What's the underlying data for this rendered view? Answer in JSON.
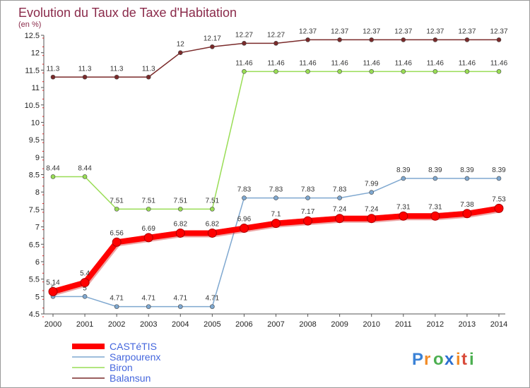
{
  "chart_data": {
    "type": "line",
    "title": "Evolution du Taux de Taxe d'Habitation",
    "ylabel": "(en %)",
    "xlabel": "",
    "ylim": [
      4.5,
      12.5
    ],
    "ytick_step": 0.5,
    "grid": false,
    "legend_position": "bottom-left",
    "categories": [
      "2000",
      "2001",
      "2002",
      "2003",
      "2004",
      "2005",
      "2006",
      "2007",
      "2008",
      "2009",
      "2010",
      "2011",
      "2012",
      "2013",
      "2014"
    ],
    "series": [
      {
        "name": "CASTéTIS",
        "color": "#ff0000",
        "values": [
          5.14,
          5.4,
          6.56,
          6.69,
          6.82,
          6.82,
          6.96,
          7.1,
          7.17,
          7.24,
          7.24,
          7.31,
          7.31,
          7.38,
          7.53
        ],
        "labels": [
          "5.14",
          "5.4",
          "6.56",
          "6.69",
          "6.82",
          "6.82",
          "6.96",
          "7.1",
          "7.17",
          "7.24",
          "7.24",
          "7.31",
          "7.31",
          "7.38",
          "7.53"
        ]
      },
      {
        "name": "Sarpourenx",
        "color": "#7fa8d0",
        "values": [
          5,
          5,
          4.71,
          4.71,
          4.71,
          4.71,
          7.83,
          7.83,
          7.83,
          7.83,
          7.99,
          8.39,
          8.39,
          8.39,
          8.39
        ],
        "labels": [
          "5",
          "5",
          "4.71",
          "4.71",
          "4.71",
          "4.71",
          "7.83",
          "7.83",
          "7.83",
          "7.83",
          "7.99",
          "8.39",
          "8.39",
          "8.39",
          "8.39"
        ]
      },
      {
        "name": "Biron",
        "color": "#99dd55",
        "values": [
          8.44,
          8.44,
          7.51,
          7.51,
          7.51,
          7.51,
          11.46,
          11.46,
          11.46,
          11.46,
          11.46,
          11.46,
          11.46,
          11.46,
          11.46
        ],
        "labels": [
          "8.44",
          "8.44",
          "7.51",
          "7.51",
          "7.51",
          "7.51",
          "11.46",
          "11.46",
          "11.46",
          "11.46",
          "11.46",
          "11.46",
          "11.46",
          "11.46",
          "11.46"
        ]
      },
      {
        "name": "Balansun",
        "color": "#7a2a2a",
        "values": [
          11.3,
          11.3,
          11.3,
          11.3,
          12,
          12.17,
          12.27,
          12.27,
          12.37,
          12.37,
          12.37,
          12.37,
          12.37,
          12.37,
          12.37
        ],
        "labels": [
          "11.3",
          "11.3",
          "11.3",
          "11.3",
          "12",
          "12.17",
          "12.27",
          "12.27",
          "12.37",
          "12.37",
          "12.37",
          "12.37",
          "12.37",
          "12.37",
          "12.37"
        ]
      }
    ]
  },
  "logo": {
    "letters": [
      "P",
      "r",
      "o",
      "x",
      "i",
      "t",
      "i"
    ],
    "colors": [
      "#3b82d6",
      "#f28c28",
      "#4caf50",
      "#2b6fd0",
      "#f28c28",
      "#d94a3a",
      "#4caf50"
    ]
  }
}
